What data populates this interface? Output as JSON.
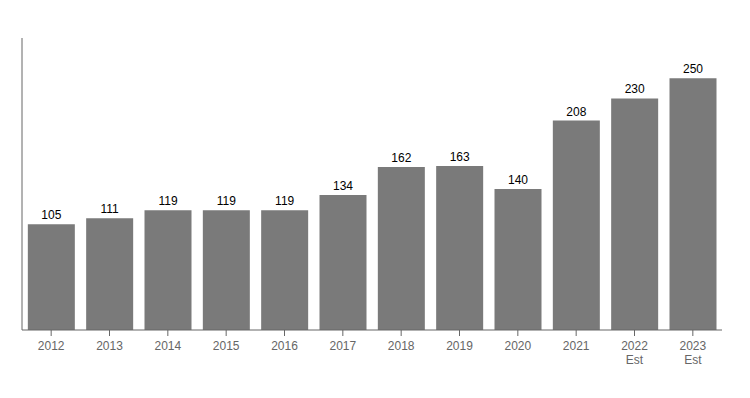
{
  "chart_data": {
    "type": "bar",
    "categories": [
      "2012",
      "2013",
      "2014",
      "2015",
      "2016",
      "2017",
      "2018",
      "2019",
      "2020",
      "2021",
      "2022\nEst",
      "2023\nEst"
    ],
    "values": [
      105,
      111,
      119,
      119,
      119,
      134,
      162,
      163,
      140,
      208,
      230,
      250
    ],
    "color": "#7a7a7a",
    "ylim": [
      0,
      290
    ],
    "grid": false,
    "data_labels": true,
    "tick_labels": "x"
  }
}
